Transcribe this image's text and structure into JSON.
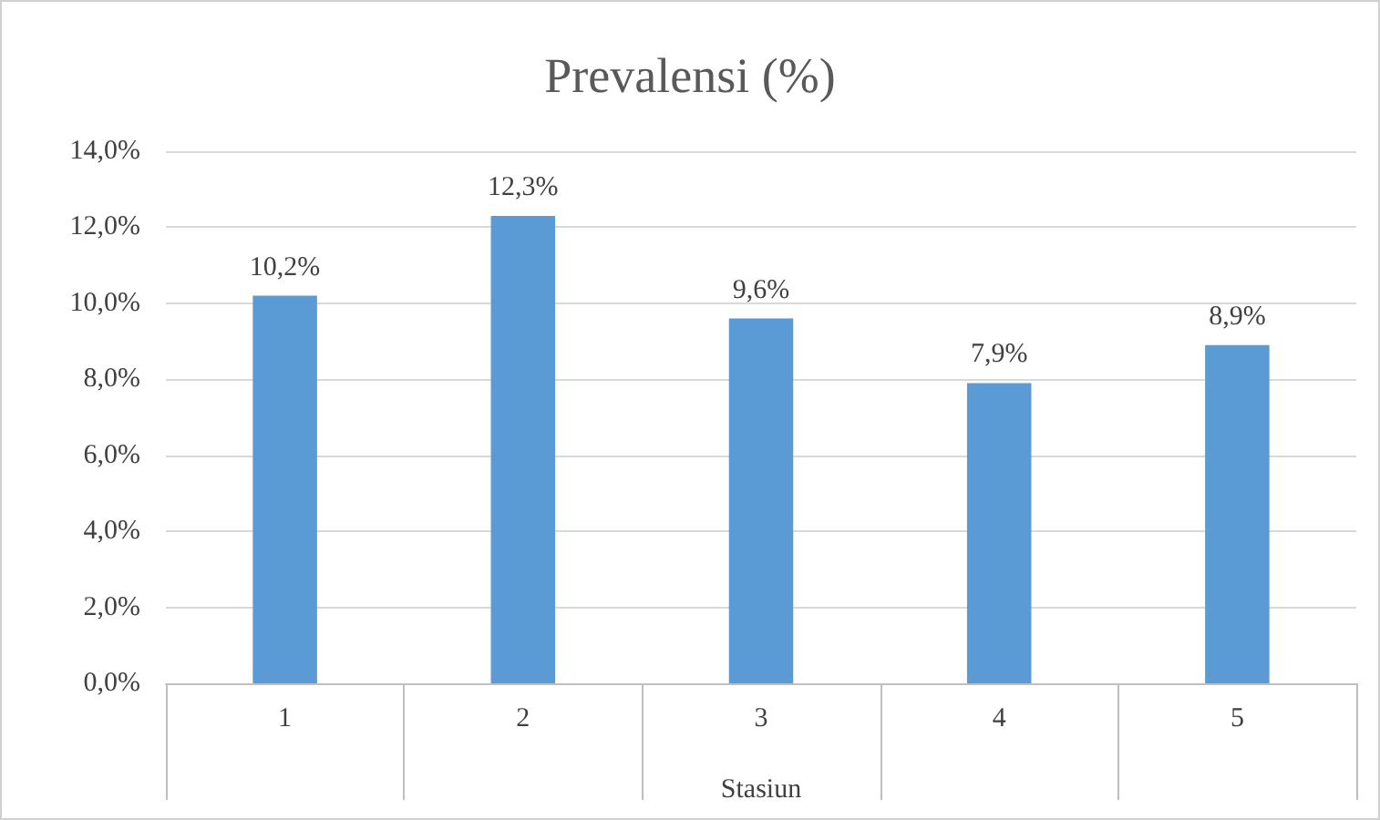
{
  "chart_data": {
    "type": "bar",
    "title": "Prevalensi (%)",
    "xlabel": "Stasiun",
    "categories": [
      "1",
      "2",
      "3",
      "4",
      "5"
    ],
    "values": [
      10.2,
      12.3,
      9.6,
      7.9,
      8.9
    ],
    "value_labels": [
      "10,2%",
      "12,3%",
      "9,6%",
      "7,9%",
      "8,9%"
    ],
    "color": "#5b9bd5",
    "ylim": [
      0,
      14
    ],
    "yticks": [
      {
        "value": 0,
        "label": "0,0%"
      },
      {
        "value": 2,
        "label": "2,0%"
      },
      {
        "value": 4,
        "label": "4,0%"
      },
      {
        "value": 6,
        "label": "6,0%"
      },
      {
        "value": 8,
        "label": "8,0%"
      },
      {
        "value": 10,
        "label": "10,0%"
      },
      {
        "value": 12,
        "label": "12,0%"
      },
      {
        "value": 14,
        "label": "14,0%"
      }
    ],
    "grid": "y"
  }
}
